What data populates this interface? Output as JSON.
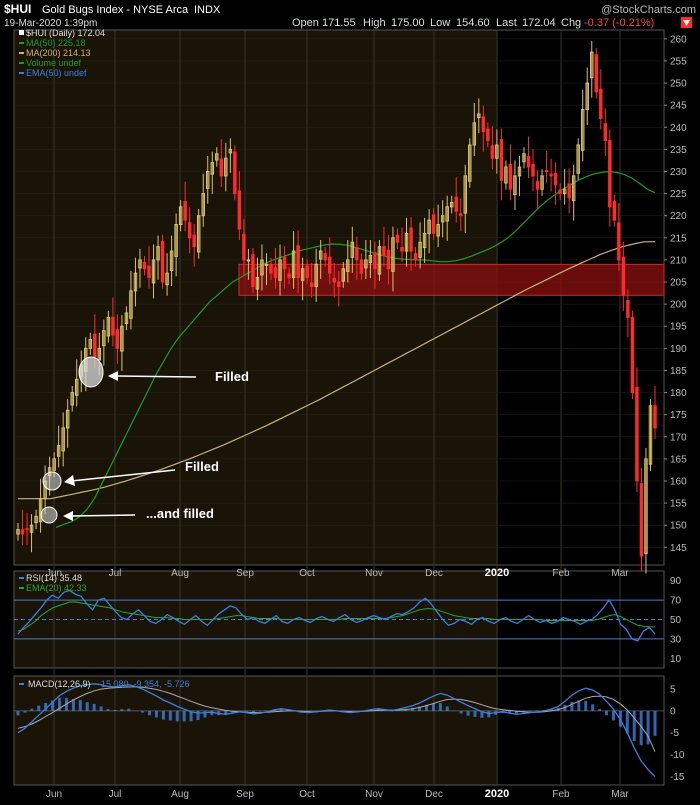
{
  "header": {
    "symbol": "$HUI",
    "name": "Gold Bugs Index - NYSE Arca",
    "exchange": "INDX",
    "brand": "@StockCharts.com",
    "date": "19-Mar-2020 1:39pm",
    "open_label": "Open",
    "open": "171.55",
    "high_label": "High",
    "high": "175.00",
    "low_label": "Low",
    "low": "154.60",
    "last_label": "Last",
    "last": "172.04",
    "chg_label": "Chg",
    "chg": "-0.37 (-0.21%)"
  },
  "legend": {
    "price": "$HUI (Daily) 172.04",
    "ma50": "MA(50) 225.18",
    "ma200": "MA(200) 214.13",
    "volume": "Volume undef",
    "ema50": "EMA(50) undef"
  },
  "rsi_legend": {
    "rsi": "RSI(14) 35.48",
    "ema": "EMA(20) 42.33"
  },
  "macd_legend": {
    "label": "MACD(12,26,9)",
    "values": "-15.080, -9.354, -5.726"
  },
  "annotations": {
    "filled_1": "Filled",
    "filled_2": "Filled",
    "filled_3": "...and filled"
  },
  "colors": {
    "up": "#d9c46a",
    "down": "#ff2a2a",
    "ma50": "#1e9c1e",
    "ma200": "#c8b278",
    "rsi": "#3b7fe0",
    "ema20": "#2aa82a",
    "macd": "#3b7fe0",
    "signal": "#aaaaaa",
    "histogram": "#3b7fe0",
    "zone": "#8b1010",
    "panel_bg_2019": "#1a1408",
    "panel_bg_2020": "#000000"
  },
  "chart_data": [
    {
      "type": "line",
      "panel": "price",
      "x_labels": [
        "Jun",
        "Jul",
        "Aug",
        "Sep",
        "Oct",
        "Nov",
        "Dec",
        "2020",
        "Feb",
        "Mar"
      ],
      "y_ticks": [
        145,
        150,
        155,
        160,
        165,
        170,
        175,
        180,
        185,
        190,
        195,
        200,
        205,
        210,
        215,
        220,
        225,
        230,
        235,
        240,
        245,
        250,
        255,
        260
      ],
      "ylim": [
        141,
        262
      ],
      "resistance_zone": [
        202,
        209
      ],
      "series": [
        {
          "name": "$HUI (Daily)",
          "values": [
            149,
            148,
            149,
            150,
            152,
            156,
            160,
            163,
            165,
            168,
            172,
            176,
            180,
            183,
            186,
            190,
            192,
            188,
            190,
            194,
            197,
            193,
            190,
            195,
            198,
            203,
            207,
            210,
            208,
            206,
            210,
            213,
            205,
            207,
            212,
            218,
            222,
            219,
            215,
            213,
            220,
            225,
            230,
            232,
            234,
            229,
            233,
            235,
            225,
            217,
            210,
            210,
            204,
            206,
            210,
            209,
            207,
            206,
            210,
            208,
            206,
            212,
            206,
            208,
            206,
            204,
            209,
            212,
            210,
            207,
            205,
            204,
            208,
            210,
            214,
            210,
            207,
            210,
            211,
            208,
            213,
            211,
            208,
            215,
            214,
            212,
            216,
            212,
            210,
            214,
            216,
            219,
            216,
            218,
            220,
            222,
            223,
            221,
            220,
            229,
            236,
            241,
            243,
            239,
            237,
            233,
            236,
            228,
            231,
            226,
            229,
            231,
            234,
            231,
            229,
            226,
            229,
            230,
            229,
            227,
            225,
            226,
            224,
            229,
            236,
            244,
            250,
            257,
            248,
            242,
            237,
            222,
            219,
            210,
            202,
            197,
            180,
            160,
            143,
            165,
            177,
            172
          ]
        },
        {
          "name": "MA(50)",
          "values": [
            149.5,
            150.2,
            150.8,
            151.8,
            153.5,
            156,
            159.5,
            163,
            166.5,
            170,
            173.5,
            177,
            180.5,
            184,
            187,
            190,
            192.5,
            194.5,
            196.5,
            198.5,
            200.5,
            202,
            203.5,
            205,
            206,
            207,
            208,
            209,
            209.8,
            210.4,
            211,
            211.6,
            212.2,
            212.6,
            213,
            213.4,
            213.6,
            213.5,
            213.3,
            212.8,
            212.3,
            211.8,
            211.2,
            210.8,
            210.4,
            210.2,
            210.1,
            210,
            210,
            209.8,
            209.6,
            209.6,
            209.8,
            210.2,
            210.8,
            211.5,
            212.2,
            213,
            214,
            215.2,
            216.8,
            218.5,
            220.3,
            222,
            223.5,
            224.8,
            226,
            227,
            228,
            228.8,
            229.4,
            229.8,
            230,
            229.8,
            229.3,
            228.5,
            227.3,
            226,
            225.2
          ]
        },
        {
          "name": "MA(200)",
          "values": [
            156,
            156,
            156,
            156,
            156.5,
            157,
            157.5,
            158,
            158.6,
            159.3,
            160,
            160.8,
            161.6,
            162.4,
            163.3,
            164.2,
            165.1,
            166.1,
            167.1,
            168.1,
            169.2,
            170.3,
            171.4,
            172.5,
            173.7,
            174.9,
            176.1,
            177.3,
            178.5,
            179.8,
            181.1,
            182.4,
            183.7,
            185,
            186.3,
            187.6,
            188.9,
            190.2,
            191.5,
            192.8,
            194.1,
            195.4,
            196.7,
            198,
            199.3,
            200.6,
            201.9,
            203.2,
            204.4,
            205.6,
            206.8,
            208,
            209.1,
            210.2,
            211.3,
            212.2,
            213,
            213.6,
            214.1,
            214.13
          ]
        }
      ]
    },
    {
      "type": "line",
      "panel": "rsi",
      "y_ticks": [
        10,
        30,
        50,
        70,
        90
      ],
      "ylim": [
        0,
        100
      ],
      "overbought": 70,
      "oversold": 30,
      "series": [
        {
          "name": "RSI(14)",
          "values": [
            35,
            42,
            48,
            55,
            62,
            70,
            75,
            72,
            78,
            80,
            76,
            74,
            66,
            60,
            70,
            72,
            65,
            58,
            52,
            50,
            56,
            60,
            54,
            48,
            46,
            50,
            55,
            52,
            48,
            45,
            50,
            54,
            48,
            44,
            50,
            56,
            60,
            64,
            62,
            55,
            50,
            52,
            48,
            46,
            50,
            54,
            48,
            46,
            50,
            52,
            49,
            47,
            51,
            53,
            50,
            48,
            52,
            55,
            50,
            47,
            49,
            52,
            54,
            52,
            50,
            53,
            56,
            55,
            58,
            62,
            68,
            72,
            66,
            58,
            50,
            44,
            46,
            50,
            48,
            45,
            50,
            52,
            48,
            46,
            50,
            52,
            48,
            46,
            50,
            54,
            50,
            47,
            49,
            46,
            48,
            52,
            50,
            48,
            45,
            48,
            50,
            55,
            62,
            70,
            60,
            45,
            40,
            30,
            28,
            38,
            42,
            35
          ]
        },
        {
          "name": "EMA(20)",
          "values": [
            38,
            40,
            44,
            48,
            54,
            58,
            62,
            64,
            66,
            68,
            68,
            67,
            66,
            65,
            64,
            63,
            62,
            60,
            58,
            57,
            56,
            55,
            54,
            53,
            52,
            52,
            52,
            51,
            51,
            50,
            50,
            50,
            50,
            50,
            50,
            51,
            52,
            53,
            54,
            54,
            53,
            52,
            51,
            51,
            51,
            51,
            50,
            50,
            50,
            50,
            50,
            50,
            50,
            50,
            50,
            50,
            50,
            51,
            51,
            51,
            51,
            51,
            51,
            51,
            51,
            52,
            53,
            54,
            56,
            58,
            60,
            61,
            61,
            60,
            58,
            56,
            54,
            53,
            52,
            51,
            51,
            51,
            51,
            50,
            50,
            50,
            50,
            50,
            50,
            50,
            50,
            50,
            49,
            49,
            49,
            49,
            49,
            49,
            49,
            49,
            49,
            50,
            52,
            54,
            55,
            53,
            50,
            47,
            44,
            43,
            42.5,
            42.33
          ]
        }
      ]
    },
    {
      "type": "line",
      "panel": "macd",
      "y_ticks": [
        5,
        0,
        -5,
        -10,
        -15
      ],
      "ylim": [
        -17,
        8
      ],
      "series": [
        {
          "name": "MACD",
          "values": [
            -5,
            -4,
            -2.5,
            -1,
            0.5,
            2,
            3.5,
            4.5,
            5.2,
            5.8,
            6,
            6.2,
            6,
            5.6,
            5.5,
            5.8,
            6,
            5.6,
            5,
            4.2,
            3.4,
            2.5,
            1.8,
            1,
            0.4,
            -0.2,
            -0.5,
            -0.4,
            -0.3,
            -0.6,
            -0.8,
            -0.5,
            -0.2,
            -0.4,
            -0.7,
            -0.5,
            -0.2,
            0.2,
            0.5,
            0.3,
            0,
            -0.3,
            -0.4,
            -0.2,
            0,
            0.2,
            0,
            -0.2,
            -0.4,
            -0.2,
            0,
            0.3,
            0.5,
            0.3,
            0.1,
            0.4,
            0.8,
            1.2,
            1.8,
            2.6,
            3.4,
            4,
            3.6,
            2.8,
            2,
            1.2,
            0.5,
            -0.2,
            -0.6,
            -0.4,
            -0.2,
            -0.5,
            -0.8,
            -0.6,
            -0.4,
            -0.2,
            0,
            0.4,
            1,
            2.2,
            3.6,
            4.6,
            5.2,
            4.8,
            3.8,
            2.2,
            0.4,
            -2,
            -5,
            -8.5,
            -11.5,
            -13.5,
            -15.08
          ]
        },
        {
          "name": "Signal",
          "values": [
            -4,
            -3.6,
            -3,
            -2.2,
            -1.3,
            -0.4,
            0.6,
            1.6,
            2.5,
            3.3,
            4,
            4.6,
            5,
            5.2,
            5.3,
            5.4,
            5.5,
            5.5,
            5.4,
            5.2,
            4.9,
            4.5,
            4,
            3.4,
            2.8,
            2.2,
            1.6,
            1.1,
            0.7,
            0.4,
            0.1,
            -0.1,
            -0.2,
            -0.3,
            -0.4,
            -0.4,
            -0.3,
            -0.2,
            -0.1,
            0,
            0,
            -0.1,
            -0.2,
            -0.2,
            -0.1,
            0,
            0,
            -0.1,
            -0.2,
            -0.2,
            -0.1,
            0,
            0.1,
            0.2,
            0.2,
            0.2,
            0.3,
            0.5,
            0.8,
            1.2,
            1.7,
            2.2,
            2.6,
            2.7,
            2.6,
            2.3,
            1.9,
            1.4,
            0.9,
            0.5,
            0.3,
            0.1,
            -0.1,
            -0.2,
            -0.3,
            -0.3,
            -0.2,
            0,
            0.3,
            0.8,
            1.5,
            2.2,
            2.9,
            3.3,
            3.4,
            3.2,
            2.6,
            1.6,
            0.2,
            -1.6,
            -3.6,
            -5.8,
            -9.354
          ]
        }
      ]
    }
  ]
}
